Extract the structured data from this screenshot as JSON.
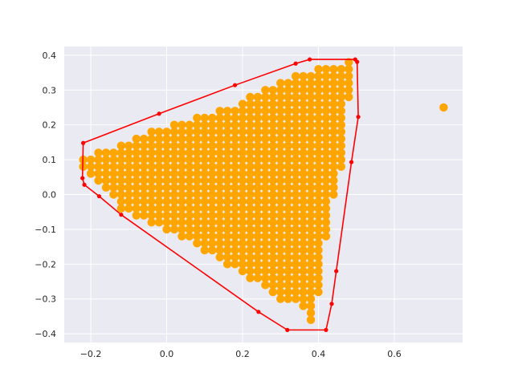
{
  "chart_data": {
    "type": "scatter",
    "title": "",
    "xlabel": "",
    "ylabel": "",
    "xlim": [
      -0.27,
      0.78
    ],
    "ylim": [
      -0.425,
      0.425
    ],
    "grid": true,
    "x_ticks": [
      -0.2,
      0.0,
      0.2,
      0.4,
      0.6
    ],
    "y_ticks": [
      0.4,
      0.3,
      0.2,
      0.1,
      0.0,
      -0.1,
      -0.2,
      -0.3,
      -0.4
    ],
    "x_tick_labels": [
      "−0.2",
      "0.0",
      "0.2",
      "0.4",
      "0.6"
    ],
    "y_tick_labels": [
      "0.4",
      "0.3",
      "0.2",
      "0.1",
      "0.0",
      "−0.1",
      "−0.2",
      "−0.3",
      "−0.4"
    ],
    "colors": {
      "background": "#eaeaf2",
      "grid": "#ffffff",
      "points": "#ffa500",
      "hull": "#ff0000"
    },
    "series": [
      {
        "type": "scatter",
        "color": "#ffa500",
        "grid_step": 0.02,
        "hull_for_cloud": [
          [
            -0.225,
            0.1
          ],
          [
            -0.14,
            0.14
          ],
          [
            0.0,
            0.2
          ],
          [
            0.18,
            0.26
          ],
          [
            0.34,
            0.35
          ],
          [
            0.46,
            0.38
          ],
          [
            0.49,
            0.39
          ],
          [
            0.48,
            0.26
          ],
          [
            0.47,
            0.12
          ],
          [
            0.43,
            -0.05
          ],
          [
            0.41,
            -0.2
          ],
          [
            0.39,
            -0.39
          ],
          [
            0.37,
            -0.33
          ],
          [
            0.3,
            -0.3
          ],
          [
            0.2,
            -0.23
          ],
          [
            0.08,
            -0.15
          ],
          [
            0.0,
            -0.1
          ],
          [
            -0.12,
            -0.04
          ],
          [
            -0.22,
            0.07
          ]
        ],
        "outliers": [
          [
            0.73,
            0.25
          ]
        ]
      },
      {
        "type": "line",
        "closed": true,
        "color": "#ff0000",
        "points": [
          [
            -0.22,
            0.148
          ],
          [
            -0.02,
            0.232
          ],
          [
            0.18,
            0.314
          ],
          [
            0.34,
            0.376
          ],
          [
            0.377,
            0.388
          ],
          [
            0.497,
            0.388
          ],
          [
            0.502,
            0.381
          ],
          [
            0.505,
            0.223
          ],
          [
            0.487,
            0.093
          ],
          [
            0.447,
            -0.22
          ],
          [
            0.435,
            -0.314
          ],
          [
            0.42,
            -0.389
          ],
          [
            0.318,
            -0.389
          ],
          [
            0.242,
            -0.337
          ],
          [
            -0.12,
            -0.058
          ],
          [
            -0.178,
            -0.005
          ],
          [
            -0.217,
            0.028
          ],
          [
            -0.222,
            0.047
          ]
        ]
      }
    ]
  }
}
